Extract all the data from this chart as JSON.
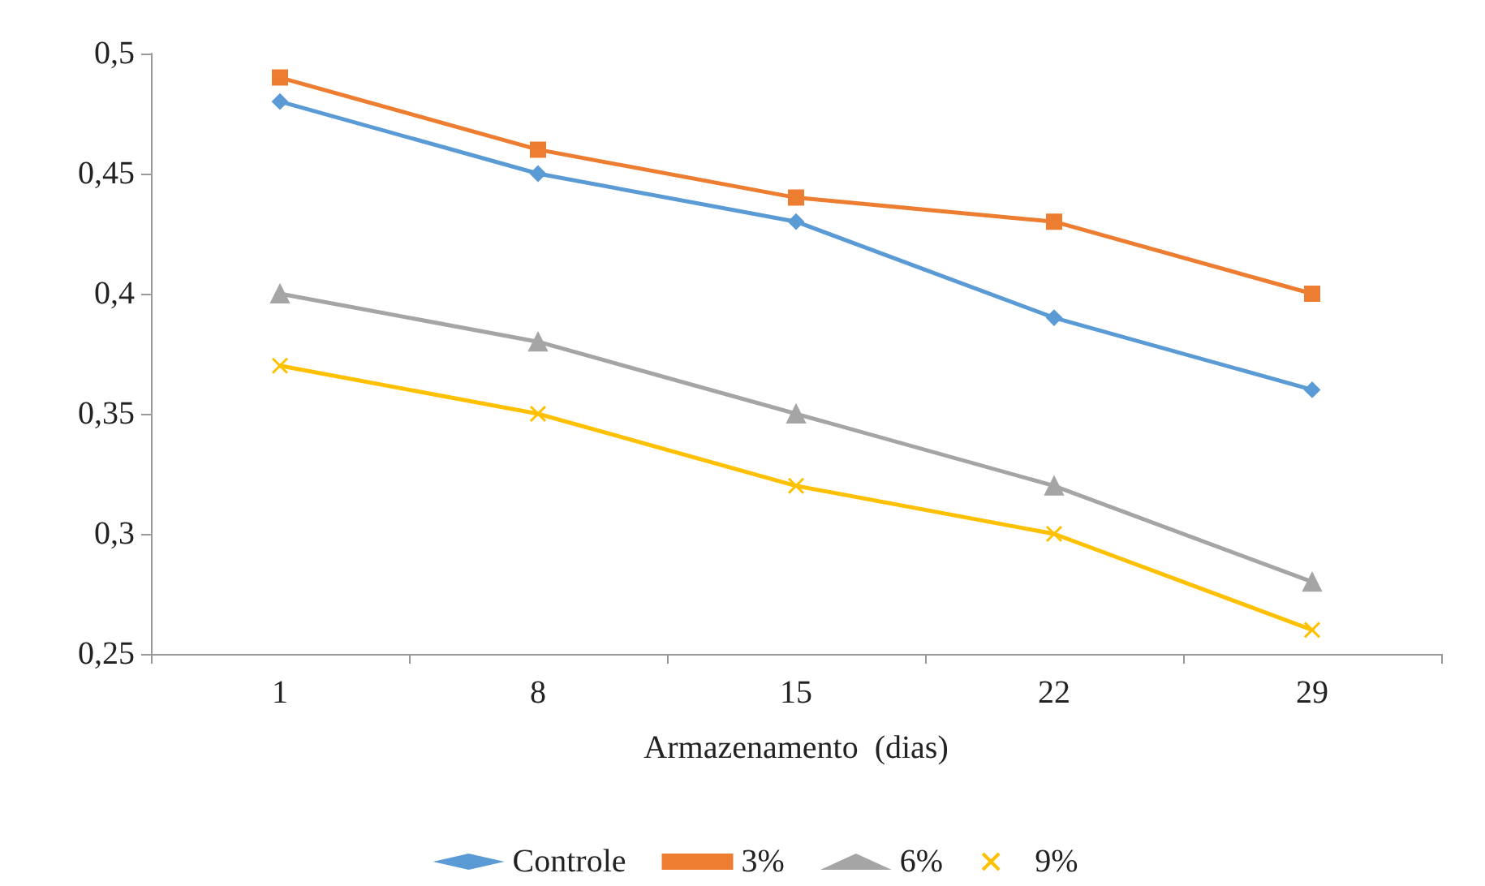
{
  "chart_data": {
    "type": "line",
    "xlabel": "Armazenamento  (dias)",
    "categories": [
      "1",
      "8",
      "15",
      "22",
      "29"
    ],
    "series": [
      {
        "name": "Controle",
        "color": "#5b9bd5",
        "marker": "diamond",
        "values": [
          0.48,
          0.45,
          0.43,
          0.39,
          0.36
        ]
      },
      {
        "name": "3%",
        "color": "#ed7d31",
        "marker": "square",
        "values": [
          0.49,
          0.46,
          0.44,
          0.43,
          0.4
        ]
      },
      {
        "name": "6%",
        "color": "#a5a5a5",
        "marker": "triangle",
        "values": [
          0.4,
          0.38,
          0.35,
          0.32,
          0.28
        ]
      },
      {
        "name": "9%",
        "color": "#ffc000",
        "marker": "cross",
        "values": [
          0.37,
          0.35,
          0.32,
          0.3,
          0.26
        ]
      }
    ],
    "ylim": [
      0.25,
      0.5
    ],
    "yticks": [
      {
        "value": 0.25,
        "label": "0,25"
      },
      {
        "value": 0.3,
        "label": "0,3"
      },
      {
        "value": 0.35,
        "label": "0,35"
      },
      {
        "value": 0.4,
        "label": "0,4"
      },
      {
        "value": 0.45,
        "label": "0,45"
      },
      {
        "value": 0.5,
        "label": "0,5"
      }
    ],
    "grid": false,
    "legend": "bottom",
    "line_style": "solid"
  }
}
